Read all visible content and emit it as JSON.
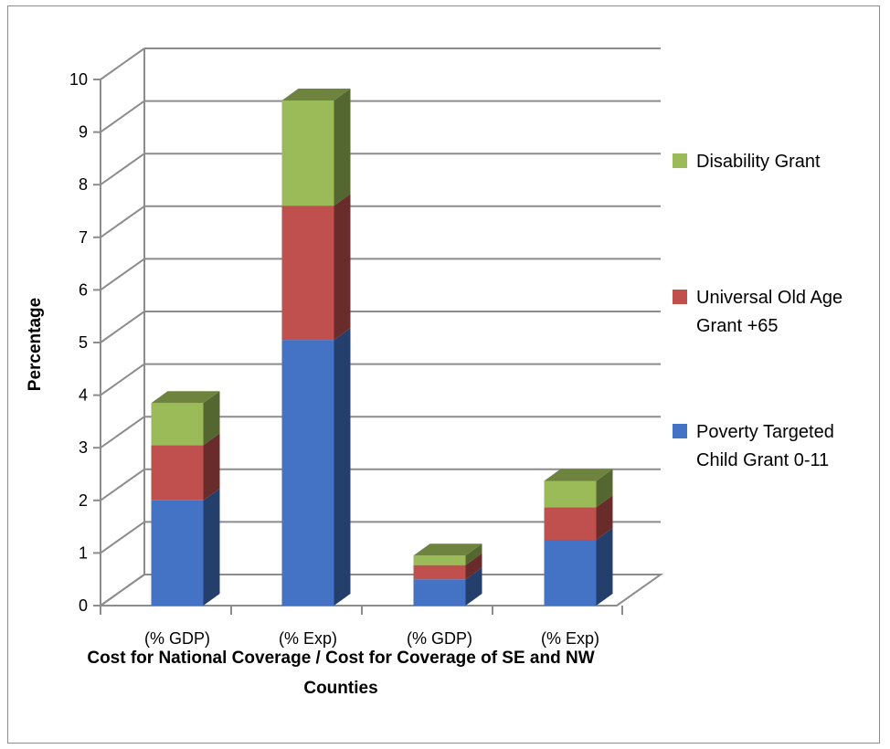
{
  "chart_data": {
    "type": "bar",
    "stacked": true,
    "three_d": true,
    "categories": [
      "(% GDP)",
      "(% Exp)",
      "(% GDP)",
      "(% Exp)"
    ],
    "series": [
      {
        "name": "Poverty Targeted Child Grant 0-11",
        "values": [
          2.0,
          5.05,
          0.5,
          1.25
        ],
        "color": "#4472C4",
        "legend_lines": [
          "Poverty Targeted",
          "Child Grant 0-11"
        ]
      },
      {
        "name": "Universal Old Age Grant +65",
        "values": [
          1.05,
          2.55,
          0.27,
          0.62
        ],
        "color": "#C0504D",
        "legend_lines": [
          "Universal Old Age",
          "Grant +65"
        ]
      },
      {
        "name": "Disability Grant",
        "values": [
          0.8,
          2.0,
          0.18,
          0.5
        ],
        "color": "#9BBB59",
        "legend_lines": [
          "Disability Grant"
        ]
      }
    ],
    "ylabel": "Percentage",
    "xlabel_lines": [
      "Cost for National Coverage / Cost for Coverage of SE and NW",
      "Counties"
    ],
    "yticks": [
      "0",
      "1",
      "2",
      "3",
      "4",
      "5",
      "6",
      "7",
      "8",
      "9",
      "10"
    ],
    "ylim": [
      0,
      10
    ],
    "grid": true,
    "legend_position": "right"
  }
}
